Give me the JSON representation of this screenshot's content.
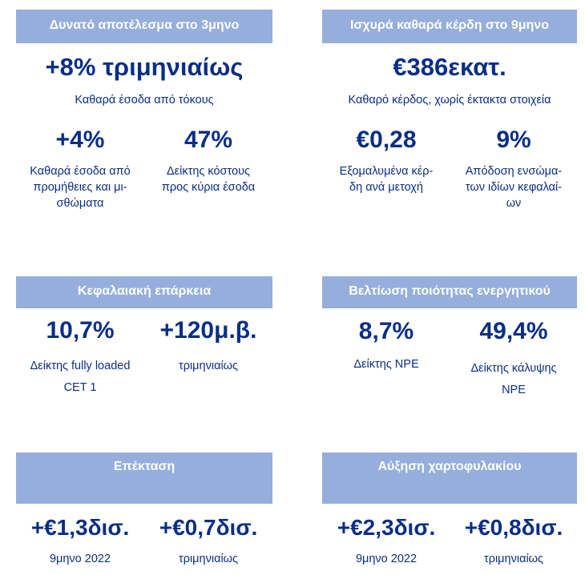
{
  "colors": {
    "header_bg": "#95aedc",
    "header_text": "#ffffff",
    "value_text": "#0a2e86"
  },
  "panels": [
    {
      "header": "Δυνατό αποτέλεσμα στο 3μηνο",
      "main": {
        "value": "+8% τριμηνιαίως",
        "label": "Καθαρά έσοδα από τόκους"
      },
      "metrics": [
        {
          "value": "+4%",
          "label": "Καθαρά έσοδα από προμήθειες και μι-σθώματα"
        },
        {
          "value": "47%",
          "label": "Δείκτης κόστους προς κύρια έσοδα"
        }
      ]
    },
    {
      "header": "Ισχυρά καθαρά κέρδη στο 9μηνο",
      "main": {
        "value": "€386εκατ.",
        "label": "Καθαρό κέρδος, χωρίς έκτακτα στοιχεία"
      },
      "metrics": [
        {
          "value": "€0,28",
          "label": "Εξομαλυμένα κέρ-δη ανά μετοχή"
        },
        {
          "value": "9%",
          "label": "Απόδοση ενσώμα-των ιδίων κεφαλαί-ων"
        }
      ]
    },
    {
      "header": "Κεφαλαιακή επάρκεια",
      "metrics": [
        {
          "value": "10,7%",
          "label": "Δείκτης fully loaded CET 1"
        },
        {
          "value": "+120μ.β.",
          "label": "τριμηνιαίως"
        }
      ]
    },
    {
      "header": "Βελτίωση ποιότητας ενεργητικού",
      "metrics": [
        {
          "value": "8,7%",
          "label": "Δείκτης NPE"
        },
        {
          "value": "49,4%",
          "label": "Δείκτης κάλυψης NPE"
        }
      ]
    },
    {
      "header": "Επέκταση",
      "metrics": [
        {
          "value": "+€1,3δισ.",
          "label": "9μηνο 2022"
        },
        {
          "value": "+€0,7δισ.",
          "label": "τριμηνιαίως"
        }
      ]
    },
    {
      "header": "Αύξηση χαρτοφυλακίου",
      "metrics": [
        {
          "value": "+€2,3δισ.",
          "label": "9μηνο 2022"
        },
        {
          "value": "+€0,8δισ.",
          "label": "τριμηνιαίως"
        }
      ]
    }
  ]
}
